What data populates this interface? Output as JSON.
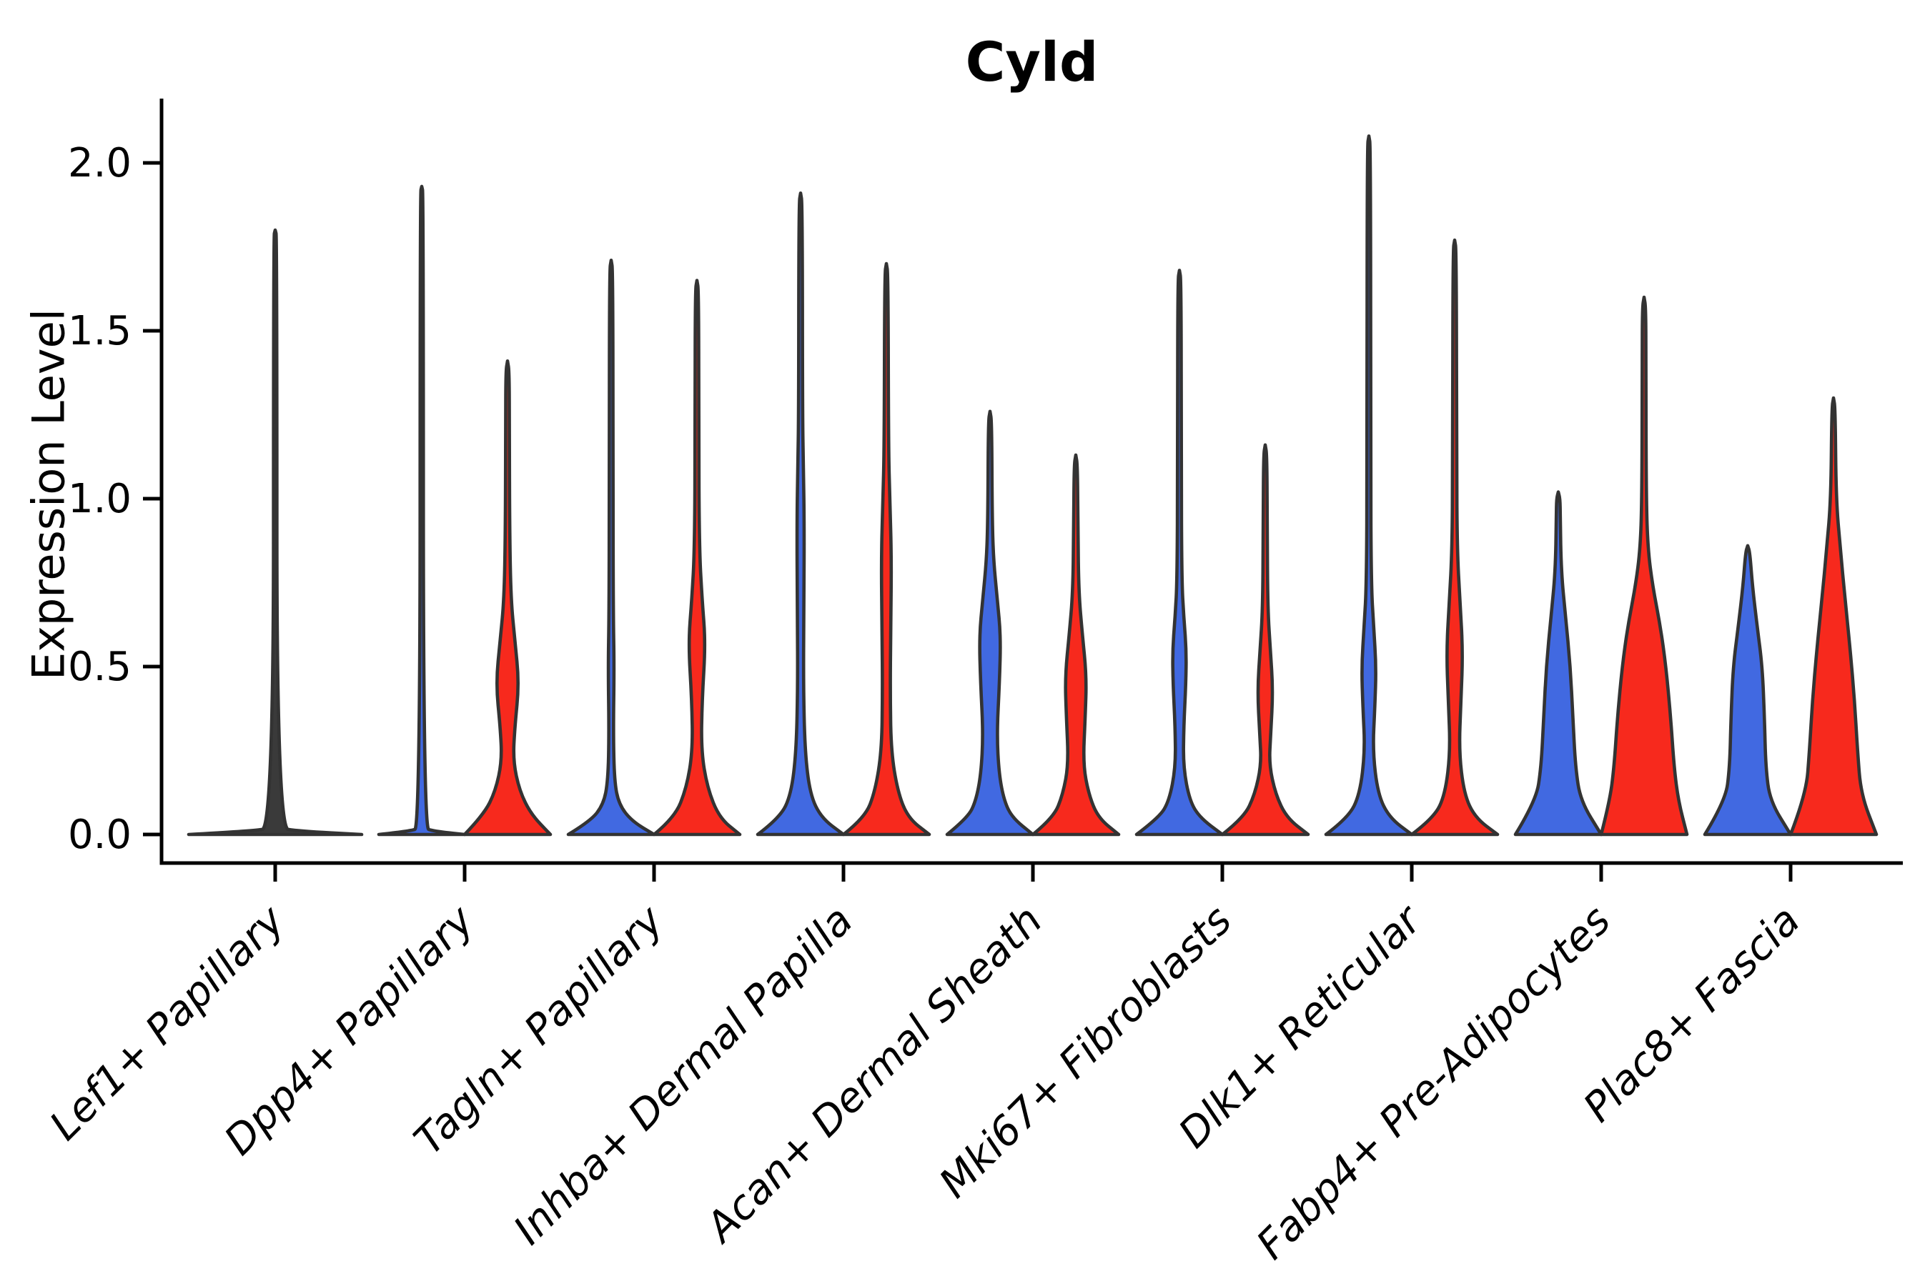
{
  "title": "Cyld",
  "axes": {
    "ylabel": "Expression Level",
    "ytick_labels": [
      "0.0",
      "0.5",
      "1.0",
      "1.5",
      "2.0"
    ],
    "ytick_values": [
      0.0,
      0.5,
      1.0,
      1.5,
      2.0
    ]
  },
  "colors": {
    "blue": "#4169E1",
    "red": "#F7291D",
    "outline": "#333333",
    "axis": "#000000",
    "single": "#3a3a3a"
  },
  "chart_data": {
    "type": "violin",
    "title": "Cyld",
    "ylabel": "Expression Level",
    "ylim": [
      -0.09,
      2.19
    ],
    "grid": false,
    "legend": "none",
    "categories": [
      "Lef1+ Papillary",
      "Dpp4+ Papillary",
      "Tagln+ Papillary",
      "Inhba+ Dermal Papilla",
      "Acan+ Dermal Sheath",
      "Mki67+ Fibroblasts",
      "Dlk1+ Reticular",
      "Fabp4+ Pre-Adipocytes",
      "Plac8+ Fascia"
    ],
    "groups": [
      {
        "id": "blue",
        "color": "#4169E1"
      },
      {
        "id": "red",
        "color": "#F7291D"
      }
    ],
    "violins": [
      {
        "category": "Lef1+ Papillary",
        "items": [
          {
            "group": "single",
            "max": 1.8,
            "profile": [
              [
                0,
                1
              ],
              [
                0.01,
                0.28
              ],
              [
                0.02,
                0.02
              ],
              [
                1.78,
                0.02
              ],
              [
                1.8,
                0
              ]
            ]
          }
        ]
      },
      {
        "category": "Dpp4+ Papillary",
        "items": [
          {
            "group": "blue",
            "max": 1.93,
            "profile": [
              [
                0,
                1
              ],
              [
                0.01,
                0.28
              ],
              [
                0.02,
                0.04
              ],
              [
                1.91,
                0.038
              ],
              [
                1.93,
                0
              ]
            ]
          },
          {
            "group": "red",
            "max": 1.41,
            "profile": [
              [
                0,
                1
              ],
              [
                0.06,
                0.55
              ],
              [
                0.13,
                0.28
              ],
              [
                0.22,
                0.13
              ],
              [
                0.32,
                0.17
              ],
              [
                0.45,
                0.27
              ],
              [
                0.58,
                0.17
              ],
              [
                0.7,
                0.08
              ],
              [
                0.9,
                0.05
              ],
              [
                1.2,
                0.042
              ],
              [
                1.38,
                0.04
              ],
              [
                1.41,
                0
              ]
            ]
          }
        ]
      },
      {
        "category": "Tagln+ Papillary",
        "items": [
          {
            "group": "blue",
            "max": 1.71,
            "profile": [
              [
                0,
                1
              ],
              [
                0.04,
                0.48
              ],
              [
                0.09,
                0.18
              ],
              [
                0.16,
                0.075
              ],
              [
                0.3,
                0.05
              ],
              [
                0.5,
                0.07
              ],
              [
                0.65,
                0.05
              ],
              [
                1.0,
                0.042
              ],
              [
                1.68,
                0.04
              ],
              [
                1.71,
                0
              ]
            ]
          },
          {
            "group": "red",
            "max": 1.65,
            "profile": [
              [
                0,
                1
              ],
              [
                0.05,
                0.52
              ],
              [
                0.14,
                0.24
              ],
              [
                0.25,
                0.1
              ],
              [
                0.4,
                0.12
              ],
              [
                0.57,
                0.2
              ],
              [
                0.7,
                0.12
              ],
              [
                0.85,
                0.055
              ],
              [
                1.2,
                0.042
              ],
              [
                1.62,
                0.04
              ],
              [
                1.65,
                0
              ]
            ]
          }
        ]
      },
      {
        "category": "Inhba+ Dermal Papilla",
        "items": [
          {
            "group": "blue",
            "max": 1.91,
            "profile": [
              [
                0,
                1
              ],
              [
                0.05,
                0.48
              ],
              [
                0.12,
                0.22
              ],
              [
                0.25,
                0.1
              ],
              [
                0.45,
                0.065
              ],
              [
                0.7,
                0.08
              ],
              [
                0.93,
                0.085
              ],
              [
                1.1,
                0.065
              ],
              [
                1.25,
                0.045
              ],
              [
                1.88,
                0.04
              ],
              [
                1.91,
                0
              ]
            ]
          },
          {
            "group": "red",
            "max": 1.7,
            "profile": [
              [
                0,
                1
              ],
              [
                0.05,
                0.5
              ],
              [
                0.13,
                0.26
              ],
              [
                0.25,
                0.11
              ],
              [
                0.42,
                0.09
              ],
              [
                0.6,
                0.1
              ],
              [
                0.82,
                0.12
              ],
              [
                1.0,
                0.08
              ],
              [
                1.15,
                0.05
              ],
              [
                1.67,
                0.04
              ],
              [
                1.7,
                0
              ]
            ]
          }
        ]
      },
      {
        "category": "Acan+ Dermal Sheath",
        "items": [
          {
            "group": "blue",
            "max": 1.26,
            "profile": [
              [
                0,
                1
              ],
              [
                0.05,
                0.52
              ],
              [
                0.1,
                0.33
              ],
              [
                0.18,
                0.21
              ],
              [
                0.3,
                0.16
              ],
              [
                0.45,
                0.22
              ],
              [
                0.59,
                0.25
              ],
              [
                0.7,
                0.17
              ],
              [
                0.82,
                0.08
              ],
              [
                0.95,
                0.05
              ],
              [
                1.23,
                0.04
              ],
              [
                1.26,
                0
              ]
            ]
          },
          {
            "group": "red",
            "max": 1.13,
            "profile": [
              [
                0,
                1
              ],
              [
                0.05,
                0.52
              ],
              [
                0.12,
                0.3
              ],
              [
                0.21,
                0.17
              ],
              [
                0.35,
                0.22
              ],
              [
                0.47,
                0.25
              ],
              [
                0.6,
                0.15
              ],
              [
                0.72,
                0.07
              ],
              [
                0.9,
                0.05
              ],
              [
                1.1,
                0.04
              ],
              [
                1.13,
                0
              ]
            ]
          }
        ]
      },
      {
        "category": "Mki67+ Fibroblasts",
        "items": [
          {
            "group": "blue",
            "max": 1.68,
            "profile": [
              [
                0,
                1
              ],
              [
                0.05,
                0.48
              ],
              [
                0.1,
                0.24
              ],
              [
                0.2,
                0.09
              ],
              [
                0.32,
                0.1
              ],
              [
                0.45,
                0.15
              ],
              [
                0.55,
                0.16
              ],
              [
                0.65,
                0.1
              ],
              [
                0.75,
                0.055
              ],
              [
                1.1,
                0.042
              ],
              [
                1.65,
                0.04
              ],
              [
                1.68,
                0
              ]
            ]
          },
          {
            "group": "red",
            "max": 1.16,
            "profile": [
              [
                0,
                1
              ],
              [
                0.05,
                0.5
              ],
              [
                0.12,
                0.24
              ],
              [
                0.21,
                0.09
              ],
              [
                0.3,
                0.13
              ],
              [
                0.43,
                0.18
              ],
              [
                0.55,
                0.12
              ],
              [
                0.67,
                0.06
              ],
              [
                0.9,
                0.045
              ],
              [
                1.13,
                0.04
              ],
              [
                1.16,
                0
              ]
            ]
          }
        ]
      },
      {
        "category": "Dlk1+ Reticular",
        "items": [
          {
            "group": "blue",
            "max": 2.08,
            "profile": [
              [
                0,
                1
              ],
              [
                0.05,
                0.48
              ],
              [
                0.12,
                0.21
              ],
              [
                0.25,
                0.09
              ],
              [
                0.38,
                0.14
              ],
              [
                0.5,
                0.17
              ],
              [
                0.62,
                0.11
              ],
              [
                0.75,
                0.055
              ],
              [
                1.1,
                0.042
              ],
              [
                2.05,
                0.04
              ],
              [
                2.08,
                0
              ]
            ]
          },
          {
            "group": "red",
            "max": 1.77,
            "profile": [
              [
                0,
                1
              ],
              [
                0.05,
                0.48
              ],
              [
                0.12,
                0.22
              ],
              [
                0.25,
                0.1
              ],
              [
                0.4,
                0.15
              ],
              [
                0.55,
                0.19
              ],
              [
                0.7,
                0.12
              ],
              [
                0.85,
                0.06
              ],
              [
                1.1,
                0.045
              ],
              [
                1.74,
                0.04
              ],
              [
                1.77,
                0
              ]
            ]
          }
        ]
      },
      {
        "category": "Fabp4+ Pre-Adipocytes",
        "items": [
          {
            "group": "blue",
            "max": 1.02,
            "profile": [
              [
                0,
                1
              ],
              [
                0.1,
                0.52
              ],
              [
                0.2,
                0.4
              ],
              [
                0.35,
                0.34
              ],
              [
                0.5,
                0.28
              ],
              [
                0.65,
                0.17
              ],
              [
                0.78,
                0.07
              ],
              [
                0.95,
                0.045
              ],
              [
                1.0,
                0.04
              ],
              [
                1.02,
                0
              ]
            ]
          },
          {
            "group": "red",
            "max": 1.6,
            "profile": [
              [
                0,
                1
              ],
              [
                0.1,
                0.8
              ],
              [
                0.2,
                0.7
              ],
              [
                0.35,
                0.62
              ],
              [
                0.5,
                0.51
              ],
              [
                0.62,
                0.38
              ],
              [
                0.74,
                0.2
              ],
              [
                0.85,
                0.09
              ],
              [
                1.0,
                0.05
              ],
              [
                1.4,
                0.042
              ],
              [
                1.57,
                0.04
              ],
              [
                1.6,
                0
              ]
            ]
          }
        ]
      },
      {
        "category": "Plac8+ Fascia",
        "items": [
          {
            "group": "blue",
            "max": 0.86,
            "profile": [
              [
                0,
                1
              ],
              [
                0.1,
                0.52
              ],
              [
                0.2,
                0.42
              ],
              [
                0.35,
                0.39
              ],
              [
                0.5,
                0.34
              ],
              [
                0.62,
                0.22
              ],
              [
                0.74,
                0.11
              ],
              [
                0.84,
                0.05
              ],
              [
                0.86,
                0
              ]
            ]
          },
          {
            "group": "red",
            "max": 1.3,
            "profile": [
              [
                0,
                1
              ],
              [
                0.12,
                0.64
              ],
              [
                0.25,
                0.56
              ],
              [
                0.4,
                0.49
              ],
              [
                0.55,
                0.39
              ],
              [
                0.7,
                0.27
              ],
              [
                0.85,
                0.16
              ],
              [
                1.0,
                0.06
              ],
              [
                1.27,
                0.04
              ],
              [
                1.3,
                0
              ]
            ]
          }
        ]
      }
    ]
  }
}
